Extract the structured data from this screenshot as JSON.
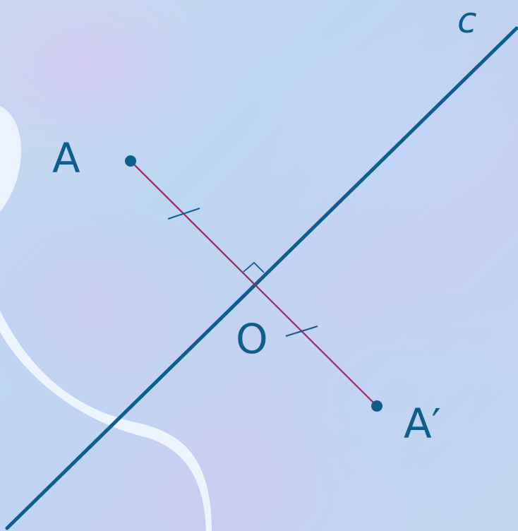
{
  "labels": {
    "point_a": "A",
    "point_a_prime": "A′",
    "point_o": "O",
    "line_c": "c"
  },
  "colors": {
    "line_c": "#0d5e8c",
    "segment": "#a3285a",
    "tick_marks": "#0d5e8c",
    "label": "#0d5e8c",
    "background_swirl": "#eef6ff"
  }
}
